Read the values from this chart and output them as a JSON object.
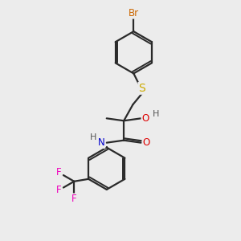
{
  "background_color": "#ececec",
  "figsize": [
    3.0,
    3.0
  ],
  "dpi": 100,
  "atom_colors": {
    "Br": "#cc6600",
    "S": "#ccaa00",
    "O": "#dd0000",
    "N": "#0000cc",
    "F": "#ee00bb",
    "H": "#555555",
    "C": "#222222"
  },
  "bond_color": "#2a2a2a",
  "bond_lw": 1.6,
  "font_size": 8.5
}
